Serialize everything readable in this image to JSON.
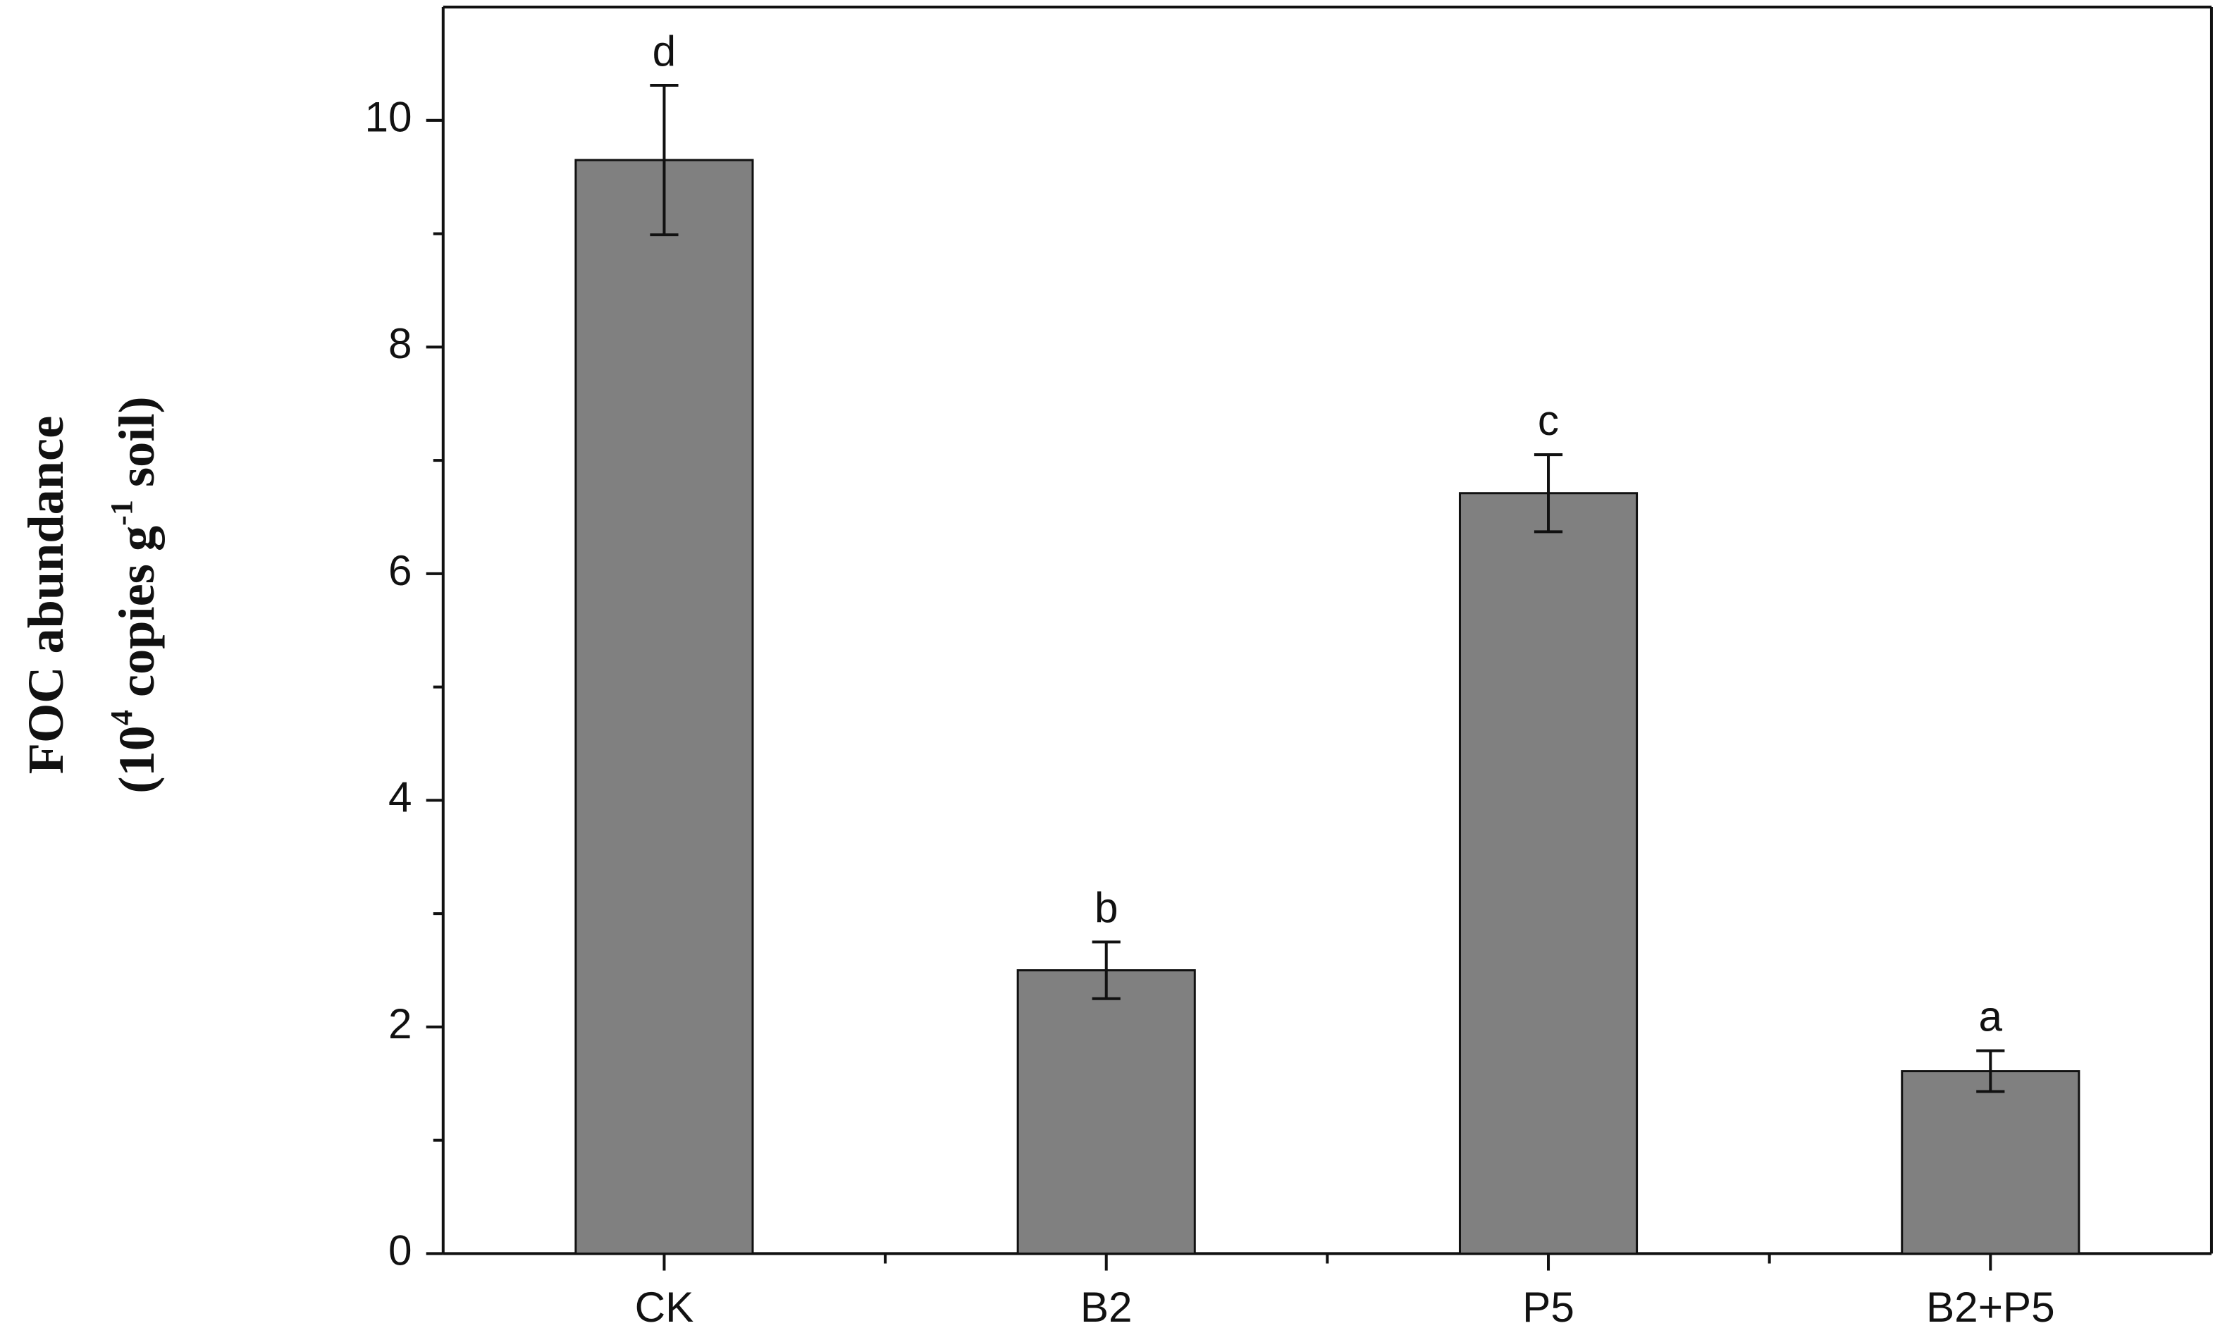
{
  "chart_data": {
    "type": "bar",
    "ylabel": "FOC abundance",
    "ylabel_units": [
      "(10",
      "4",
      " copies g",
      "-1",
      " soil)"
    ],
    "categories": [
      "CK",
      "B2",
      "P5",
      "B2+P5"
    ],
    "values": [
      9.65,
      2.5,
      6.71,
      1.61
    ],
    "errors": [
      0.66,
      0.25,
      0.34,
      0.18
    ],
    "annotations": [
      "d",
      "b",
      "c",
      "a"
    ],
    "color": "#808080",
    "ylim": [
      0,
      11
    ],
    "yticks": [
      0,
      2,
      4,
      6,
      8,
      10
    ],
    "yminorticks": [
      1,
      3,
      5,
      7,
      9
    ]
  }
}
